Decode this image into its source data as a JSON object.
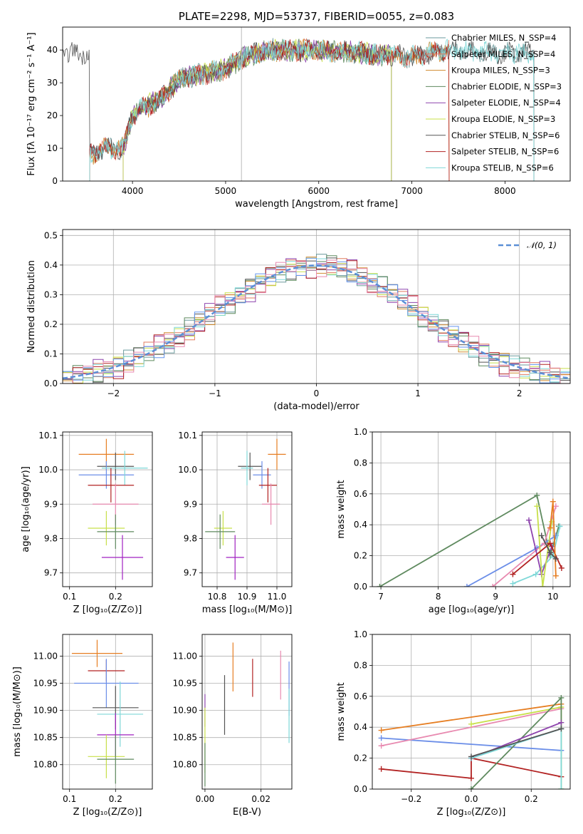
{
  "chart_data": [
    {
      "type": "line",
      "title": "PLATE=2298, MJD=53737, FIBERID=0055, z=0.083",
      "xlabel": "wavelength [Angstrom, rest frame]",
      "ylabel": "Flux [fλ 10⁻¹⁷ erg cm⁻² s⁻¹ A⁻¹]",
      "xlim": [
        3250,
        8700
      ],
      "ylim": [
        0,
        47
      ],
      "xticks": [
        "4000",
        "5000",
        "6000",
        "7000",
        "8000"
      ],
      "yticks": [
        "0",
        "10",
        "20",
        "30",
        "40"
      ],
      "legend_loc": "upper right",
      "series": [
        {
          "name": "Chabrier MILES, N_SSP=4",
          "color": "#6b9a9c",
          "x_range": [
            3540,
            8310
          ]
        },
        {
          "name": "Salpeter MILES, N_SSP=4",
          "color": "#e07a5f",
          "x_range": [
            3540,
            7400
          ]
        },
        {
          "name": "Kroupa MILES, N_SSP=3",
          "color": "#d08a2e",
          "x_range": [
            3540,
            7400
          ]
        },
        {
          "name": "Chabrier ELODIE, N_SSP=3",
          "color": "#5f8a5f",
          "x_range": [
            3900,
            6780
          ]
        },
        {
          "name": "Salpeter ELODIE, N_SSP=4",
          "color": "#8e44ad",
          "x_range": [
            3900,
            6780
          ]
        },
        {
          "name": "Kroupa ELODIE, N_SSP=3",
          "color": "#c8e04a",
          "x_range": [
            3900,
            6780
          ]
        },
        {
          "name": "Chabrier STELIB, N_SSP=6",
          "color": "#555555",
          "x_range": [
            3230,
            8310
          ]
        },
        {
          "name": "Salpeter STELIB, N_SSP=6",
          "color": "#b22222",
          "x_range": [
            3540,
            7400
          ]
        },
        {
          "name": "Kroupa STELIB, N_SSP=6",
          "color": "#7fd8d8",
          "x_range": [
            3540,
            8310
          ]
        }
      ],
      "approx_continuum": {
        "x": [
          3540,
          3700,
          3900,
          4000,
          4100,
          4300,
          4500,
          4800,
          5000,
          5200,
          5500,
          6000,
          6500,
          7000,
          7400,
          8000,
          8300
        ],
        "y": [
          8,
          10,
          10,
          20,
          22,
          25,
          31,
          33,
          34,
          38,
          40,
          40,
          39,
          38,
          40,
          39,
          39
        ]
      },
      "labeled_y_level": 40
    },
    {
      "type": "line",
      "xlabel": "(data-model)/error",
      "ylabel": "Normed distribution",
      "xlim": [
        -2.5,
        2.5
      ],
      "ylim": [
        0,
        0.52
      ],
      "xticks": [
        "−2",
        "−1",
        "0",
        "1",
        "2"
      ],
      "yticks": [
        "0.0",
        "0.1",
        "0.2",
        "0.3",
        "0.4",
        "0.5"
      ],
      "grid": true,
      "series": [
        {
          "name": "𝒩(0, 1)",
          "style": "dashed",
          "color": "#5b8fd6",
          "function": "normal_pdf"
        }
      ],
      "histogram_bins": [
        -2.5,
        2.5,
        50
      ],
      "histogram_colors": [
        "#6b9a9c",
        "#e07a5f",
        "#d08a2e",
        "#5f8a5f",
        "#8e44ad",
        "#c8e04a",
        "#555555",
        "#b22222",
        "#7fd8d8",
        "#6495ed",
        "#e88ab0"
      ],
      "histogram_offsets": [
        0.018,
        -0.015,
        0.01,
        -0.02,
        0.025,
        -0.008,
        0.012,
        -0.022,
        0.006,
        -0.012,
        0.02
      ]
    },
    {
      "type": "scatter",
      "xlabel": "Z [log₁₀(Z/Z⊙)]",
      "ylabel": "age  [log₁₀(age/yr)]",
      "xlim": [
        0.085,
        0.28
      ],
      "ylim": [
        9.66,
        10.11
      ],
      "xticks": [
        "0.1",
        "0.2"
      ],
      "yticks": [
        "9.7",
        "9.8",
        "9.9",
        "10.0",
        "10.1"
      ],
      "grid": true,
      "points": [
        {
          "x": 0.18,
          "y": 10.045,
          "xe": 0.06,
          "ye": 0.045,
          "color": "#e67e22"
        },
        {
          "x": 0.2,
          "y": 10.01,
          "xe": 0.04,
          "ye": 0.04,
          "color": "#555555"
        },
        {
          "x": 0.18,
          "y": 9.985,
          "xe": 0.06,
          "ye": 0.04,
          "color": "#6b8ee8"
        },
        {
          "x": 0.22,
          "y": 10.005,
          "xe": 0.05,
          "ye": 0.05,
          "color": "#7fd8d8"
        },
        {
          "x": 0.19,
          "y": 9.955,
          "xe": 0.05,
          "ye": 0.05,
          "color": "#b22222"
        },
        {
          "x": 0.2,
          "y": 9.9,
          "xe": 0.05,
          "ye": 0.06,
          "color": "#e88ab0"
        },
        {
          "x": 0.18,
          "y": 9.83,
          "xe": 0.04,
          "ye": 0.05,
          "color": "#c8e04a"
        },
        {
          "x": 0.2,
          "y": 9.82,
          "xe": 0.04,
          "ye": 0.05,
          "color": "#5f8a5f"
        },
        {
          "x": 0.215,
          "y": 9.745,
          "xe": 0.045,
          "ye": 0.065,
          "color": "#a020c0"
        }
      ]
    },
    {
      "type": "scatter",
      "xlabel": "mass [log₁₀(M/M⊙)]",
      "xlim": [
        10.75,
        11.05
      ],
      "ylim": [
        9.66,
        10.11
      ],
      "xticks": [
        "10.8",
        "10.9",
        "11.0"
      ],
      "yticks": [
        "9.7",
        "9.8",
        "9.9",
        "10.0",
        "10.1"
      ],
      "grid": true,
      "points": [
        {
          "x": 11.0,
          "y": 10.045,
          "xe": 0.03,
          "ye": 0.045,
          "color": "#e67e22"
        },
        {
          "x": 10.91,
          "y": 10.01,
          "xe": 0.04,
          "ye": 0.04,
          "color": "#555555"
        },
        {
          "x": 10.95,
          "y": 9.985,
          "xe": 0.03,
          "ye": 0.04,
          "color": "#6b8ee8"
        },
        {
          "x": 10.9,
          "y": 10.005,
          "xe": 0.02,
          "ye": 0.05,
          "color": "#7fd8d8"
        },
        {
          "x": 10.97,
          "y": 9.955,
          "xe": 0.03,
          "ye": 0.05,
          "color": "#b22222"
        },
        {
          "x": 10.98,
          "y": 9.9,
          "xe": 0.03,
          "ye": 0.06,
          "color": "#e88ab0"
        },
        {
          "x": 10.82,
          "y": 9.83,
          "xe": 0.03,
          "ye": 0.05,
          "color": "#c8e04a"
        },
        {
          "x": 10.81,
          "y": 9.82,
          "xe": 0.05,
          "ye": 0.05,
          "color": "#5f8a5f"
        },
        {
          "x": 10.86,
          "y": 9.745,
          "xe": 0.03,
          "ye": 0.065,
          "color": "#a020c0"
        }
      ]
    },
    {
      "type": "line",
      "xlabel": "age  [log₁₀(age/yr)]",
      "ylabel": "mass weight",
      "xlim": [
        6.85,
        10.3
      ],
      "ylim": [
        0,
        1
      ],
      "xticks": [
        "7",
        "8",
        "9",
        "10"
      ],
      "yticks": [
        "0.0",
        "0.2",
        "0.4",
        "0.6",
        "0.8",
        "1.0"
      ],
      "grid": true,
      "series": [
        {
          "color": "#5f8a5f",
          "x": [
            6.98,
            9.72,
            9.95,
            10.1
          ],
          "y": [
            0.0,
            0.59,
            0.2,
            0.39
          ]
        },
        {
          "color": "#6b8ee8",
          "x": [
            8.5,
            9.72,
            10.05
          ],
          "y": [
            0.0,
            0.25,
            0.33
          ]
        },
        {
          "color": "#e88ab0",
          "x": [
            8.95,
            9.85,
            10.05
          ],
          "y": [
            0.0,
            0.28,
            0.52
          ]
        },
        {
          "color": "#7fd8d8",
          "x": [
            9.3,
            9.7,
            10.0,
            10.12
          ],
          "y": [
            0.02,
            0.08,
            0.2,
            0.39
          ]
        },
        {
          "color": "#8e44ad",
          "x": [
            9.58,
            9.8,
            9.98
          ],
          "y": [
            0.43,
            0.08,
            0.26
          ]
        },
        {
          "color": "#c8e04a",
          "x": [
            9.72,
            9.82,
            9.98
          ],
          "y": [
            0.52,
            0.0,
            0.42
          ]
        },
        {
          "color": "#b22222",
          "x": [
            9.3,
            9.95,
            10.15
          ],
          "y": [
            0.08,
            0.28,
            0.12
          ]
        },
        {
          "color": "#e67e22",
          "x": [
            9.95,
            10.0,
            10.05
          ],
          "y": [
            0.38,
            0.55,
            0.07
          ]
        },
        {
          "color": "#555555",
          "x": [
            9.8,
            9.95,
            10.05
          ],
          "y": [
            0.33,
            0.22,
            0.18
          ]
        }
      ]
    },
    {
      "type": "scatter",
      "xlabel": "Z [log₁₀(Z/Z⊙)]",
      "ylabel": "mass [log₁₀(M/M⊙)]",
      "xlim": [
        0.085,
        0.28
      ],
      "ylim": [
        10.755,
        11.04
      ],
      "xticks": [
        "0.1",
        "0.2"
      ],
      "yticks": [
        "10.80",
        "10.85",
        "10.90",
        "10.95",
        "11.00"
      ],
      "grid": true,
      "points": [
        {
          "x": 0.16,
          "y": 11.005,
          "xe": 0.055,
          "ye": 0.025,
          "color": "#e67e22"
        },
        {
          "x": 0.18,
          "y": 10.973,
          "xe": 0.04,
          "ye": 0.02,
          "color": "#b22222"
        },
        {
          "x": 0.18,
          "y": 10.95,
          "xe": 0.07,
          "ye": 0.045,
          "color": "#6b8ee8"
        },
        {
          "x": 0.2,
          "y": 10.905,
          "xe": 0.05,
          "ye": 0.04,
          "color": "#555555"
        },
        {
          "x": 0.21,
          "y": 10.893,
          "xe": 0.05,
          "ye": 0.06,
          "color": "#7fd8d8"
        },
        {
          "x": 0.2,
          "y": 10.855,
          "xe": 0.04,
          "ye": 0.04,
          "color": "#a020c0"
        },
        {
          "x": 0.18,
          "y": 10.815,
          "xe": 0.04,
          "ye": 0.04,
          "color": "#c8e04a"
        },
        {
          "x": 0.2,
          "y": 10.81,
          "xe": 0.04,
          "ye": 0.045,
          "color": "#5f8a5f"
        }
      ]
    },
    {
      "type": "scatter",
      "xlabel": "E(B-V)",
      "xlim": [
        -0.001,
        0.031
      ],
      "ylim": [
        10.755,
        11.04
      ],
      "xticks": [
        "0.00",
        "0.02"
      ],
      "yticks": [
        "10.80",
        "10.85",
        "10.90",
        "10.95",
        "11.00"
      ],
      "grid": true,
      "points": [
        {
          "x": 0.0,
          "y": 10.9,
          "ye": 0.03,
          "color": "#8e44ad"
        },
        {
          "x": 0.0,
          "y": 10.845,
          "ye": 0.06,
          "color": "#c8e04a"
        },
        {
          "x": 0.0,
          "y": 10.8,
          "ye": 0.04,
          "color": "#5f8a5f"
        },
        {
          "x": 0.007,
          "y": 10.91,
          "ye": 0.055,
          "color": "#555555"
        },
        {
          "x": 0.01,
          "y": 10.98,
          "ye": 0.045,
          "color": "#e67e22"
        },
        {
          "x": 0.017,
          "y": 10.96,
          "ye": 0.035,
          "color": "#b22222"
        },
        {
          "x": 0.027,
          "y": 10.965,
          "ye": 0.045,
          "color": "#e88ab0"
        },
        {
          "x": 0.03,
          "y": 10.94,
          "ye": 0.05,
          "color": "#6b8ee8"
        },
        {
          "x": 0.03,
          "y": 10.89,
          "ye": 0.05,
          "color": "#7fd8d8"
        }
      ]
    },
    {
      "type": "line",
      "xlabel": "Z [log₁₀(Z/Z⊙)]",
      "ylabel": "mass weight",
      "xlim": [
        -0.33,
        0.33
      ],
      "ylim": [
        0,
        1
      ],
      "xticks": [
        "−0.2",
        "0.0",
        "0.2"
      ],
      "yticks": [
        "0.0",
        "0.2",
        "0.4",
        "0.6",
        "0.8",
        "1.0"
      ],
      "grid": true,
      "series": [
        {
          "color": "#e67e22",
          "x": [
            -0.3,
            0.3
          ],
          "y": [
            0.38,
            0.55
          ]
        },
        {
          "color": "#6b8ee8",
          "x": [
            -0.3,
            0.3
          ],
          "y": [
            0.33,
            0.25
          ]
        },
        {
          "color": "#e88ab0",
          "x": [
            -0.3,
            0.3
          ],
          "y": [
            0.28,
            0.52
          ]
        },
        {
          "color": "#b22222",
          "x": [
            -0.3,
            0.0,
            0.0,
            0.3
          ],
          "y": [
            0.13,
            0.07,
            0.2,
            0.08
          ]
        },
        {
          "color": "#c8e04a",
          "x": [
            0.0,
            0.3,
            0.3
          ],
          "y": [
            0.42,
            0.53,
            0.0
          ]
        },
        {
          "color": "#5f8a5f",
          "x": [
            0.0,
            0.3,
            0.3
          ],
          "y": [
            0.0,
            0.59,
            0.39
          ]
        },
        {
          "color": "#8e44ad",
          "x": [
            0.0,
            0.3
          ],
          "y": [
            0.2,
            0.43
          ]
        },
        {
          "color": "#7fd8d8",
          "x": [
            0.0,
            0.3,
            0.3
          ],
          "y": [
            0.2,
            0.39,
            0.0
          ]
        },
        {
          "color": "#555555",
          "x": [
            0.0,
            0.3
          ],
          "y": [
            0.21,
            0.39
          ]
        }
      ]
    }
  ]
}
